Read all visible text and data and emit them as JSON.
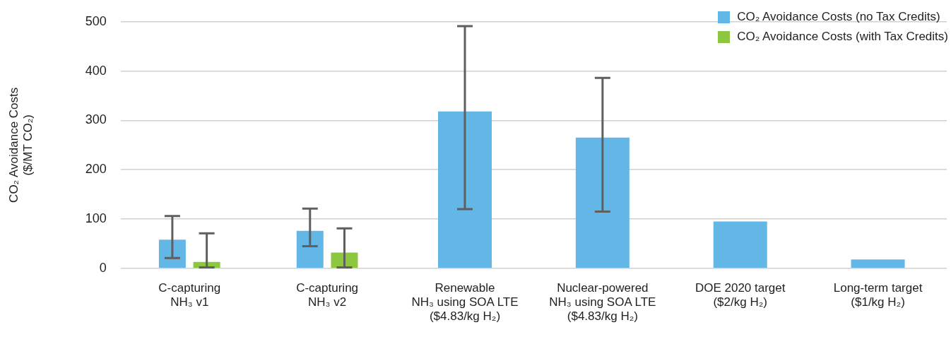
{
  "chart_data": {
    "type": "bar",
    "ylabel": "CO₂ Avoidance Costs\n($/MT CO₂)",
    "categories": [
      "C-capturing\nNH₃ v1",
      "C-capturing\nNH₃ v2",
      "Renewable\nNH₃ using SOA LTE\n($4.83/kg H₂)",
      "Nuclear-powered\nNH₃ using SOA LTE\n($4.83/kg H₂)",
      "DOE 2020 target\n($2/kg H₂)",
      "Long-term target\n($1/kg H₂)"
    ],
    "series": [
      {
        "name": "CO₂ Avoidance Costs (no Tax Credits)",
        "color": "#63b7e6",
        "values": [
          58,
          76,
          318,
          265,
          95,
          18
        ],
        "errors": [
          [
            21,
            106
          ],
          [
            45,
            121
          ],
          [
            120,
            491
          ],
          [
            115,
            386
          ],
          null,
          null
        ]
      },
      {
        "name": "CO₂ Avoidance Costs (with Tax Credits)",
        "color": "#8dc63f",
        "values": [
          13,
          32,
          null,
          null,
          null,
          null
        ],
        "errors": [
          [
            2,
            71
          ],
          [
            2,
            81
          ],
          null,
          null,
          null,
          null
        ]
      }
    ],
    "ylim": [
      0,
      500
    ],
    "yticks": [
      0,
      100,
      200,
      300,
      400,
      500
    ],
    "grid": "y",
    "legend": "top right"
  }
}
